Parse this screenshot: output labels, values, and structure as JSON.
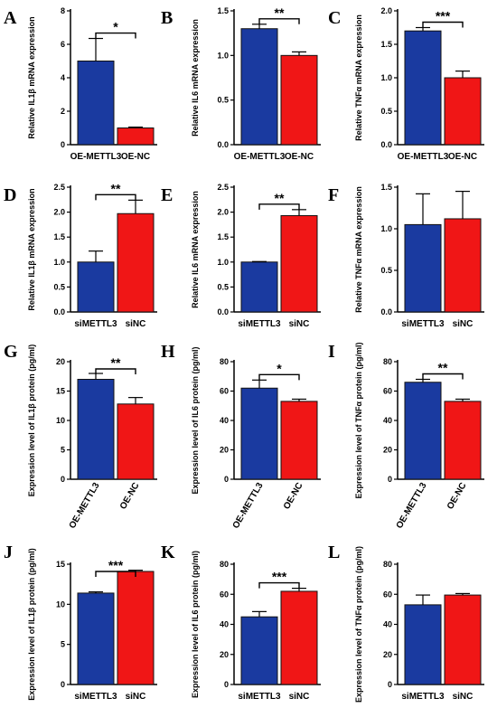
{
  "colors": {
    "blue": "#1a3aa0",
    "red": "#f01616",
    "axis": "#000000"
  },
  "chart_data": [
    {
      "panel": "A",
      "type": "bar",
      "ylabel": "Relative IL1β mRNA expression",
      "yticks": [
        "0",
        "2",
        "4",
        "6",
        "8"
      ],
      "ylim": [
        0,
        8
      ],
      "categories": [
        "OE-METTL3",
        "OE-NC"
      ],
      "values": [
        5.0,
        1.0
      ],
      "errors": [
        1.35,
        0.05
      ],
      "significance": "*",
      "rotated_labels": false
    },
    {
      "panel": "B",
      "type": "bar",
      "ylabel": "Relative IL6 mRNA expression",
      "yticks": [
        "0.0",
        "0.5",
        "1.0",
        "1.5"
      ],
      "ylim": [
        0,
        1.5
      ],
      "categories": [
        "OE-METTL3",
        "OE-NC"
      ],
      "values": [
        1.3,
        1.0
      ],
      "errors": [
        0.05,
        0.04
      ],
      "significance": "**",
      "rotated_labels": false
    },
    {
      "panel": "C",
      "type": "bar",
      "ylabel": "Relative TNFα mRNA expression",
      "yticks": [
        "0.0",
        "0.5",
        "1.0",
        "1.5",
        "2.0"
      ],
      "ylim": [
        0,
        2.0
      ],
      "categories": [
        "OE-METTL3",
        "OE-NC"
      ],
      "values": [
        1.7,
        1.0
      ],
      "errors": [
        0.05,
        0.1
      ],
      "significance": "***",
      "rotated_labels": false
    },
    {
      "panel": "D",
      "type": "bar",
      "ylabel": "Relative IL1β mRNA expression",
      "yticks": [
        "0.0",
        "0.5",
        "1.0",
        "1.5",
        "2.0",
        "2.5"
      ],
      "ylim": [
        0,
        2.5
      ],
      "categories": [
        "siMETTL3",
        "siNC"
      ],
      "values": [
        1.0,
        1.97
      ],
      "errors": [
        0.22,
        0.27
      ],
      "significance": "**",
      "rotated_labels": false
    },
    {
      "panel": "E",
      "type": "bar",
      "ylabel": "Relative IL6 mRNA expression",
      "yticks": [
        "0.0",
        "0.5",
        "1.0",
        "1.5",
        "2.0",
        "2.5"
      ],
      "ylim": [
        0,
        2.5
      ],
      "categories": [
        "siMETTL3",
        "siNC"
      ],
      "values": [
        1.0,
        1.93
      ],
      "errors": [
        0.01,
        0.12
      ],
      "significance": "**",
      "rotated_labels": false
    },
    {
      "panel": "F",
      "type": "bar",
      "ylabel": "Relative TNFα mRNA expression",
      "yticks": [
        "0.0",
        "0.5",
        "1.0",
        "1.5"
      ],
      "ylim": [
        0,
        1.5
      ],
      "categories": [
        "siMETTL3",
        "siNC"
      ],
      "values": [
        1.05,
        1.12
      ],
      "errors": [
        0.37,
        0.33
      ],
      "significance": "",
      "rotated_labels": false
    },
    {
      "panel": "G",
      "type": "bar",
      "ylabel": "Expression level of IL1β protein (pg/ml)",
      "yticks": [
        "0",
        "5",
        "10",
        "15",
        "20"
      ],
      "ylim": [
        0,
        20
      ],
      "categories": [
        "OE-METTL3",
        "OE-NC"
      ],
      "values": [
        17.0,
        12.8
      ],
      "errors": [
        1.0,
        1.1
      ],
      "significance": "**",
      "rotated_labels": true
    },
    {
      "panel": "H",
      "type": "bar",
      "ylabel": "Expression level of IL6 protein (pg/ml)",
      "yticks": [
        "0",
        "20",
        "40",
        "60",
        "80"
      ],
      "ylim": [
        0,
        80
      ],
      "categories": [
        "OE-METTL3",
        "OE-NC"
      ],
      "values": [
        62.0,
        53.0
      ],
      "errors": [
        5.5,
        1.5
      ],
      "significance": "*",
      "rotated_labels": true
    },
    {
      "panel": "I",
      "type": "bar",
      "ylabel": "Expression level of TNFα protein (pg/ml)",
      "yticks": [
        "0",
        "20",
        "40",
        "60",
        "80"
      ],
      "ylim": [
        0,
        80
      ],
      "categories": [
        "OE-METTL3",
        "OE-NC"
      ],
      "values": [
        66.0,
        53.0
      ],
      "errors": [
        2.0,
        1.5
      ],
      "significance": "**",
      "rotated_labels": true
    },
    {
      "panel": "J",
      "type": "bar",
      "ylabel": "Expression level of IL1β protein (pg/ml)",
      "yticks": [
        "0",
        "5",
        "10",
        "15"
      ],
      "ylim": [
        0,
        15
      ],
      "categories": [
        "siMETTL3",
        "siNC"
      ],
      "values": [
        11.4,
        14.1
      ],
      "errors": [
        0.15,
        0.15
      ],
      "significance": "***",
      "rotated_labels": false
    },
    {
      "panel": "K",
      "type": "bar",
      "ylabel": "Expression level of IL6 protein (pg/ml)",
      "yticks": [
        "0",
        "20",
        "40",
        "60",
        "80"
      ],
      "ylim": [
        0,
        80
      ],
      "categories": [
        "siMETTL3",
        "siNC"
      ],
      "values": [
        45.0,
        62.0
      ],
      "errors": [
        3.5,
        2.0
      ],
      "significance": "***",
      "rotated_labels": false
    },
    {
      "panel": "L",
      "type": "bar",
      "ylabel": "Expression level of TNFα protein (pg/ml)",
      "yticks": [
        "0",
        "20",
        "40",
        "60",
        "80"
      ],
      "ylim": [
        0,
        80
      ],
      "categories": [
        "siMETTL3",
        "siNC"
      ],
      "values": [
        53.0,
        59.5
      ],
      "errors": [
        6.5,
        1.0
      ],
      "significance": "",
      "rotated_labels": false
    }
  ]
}
